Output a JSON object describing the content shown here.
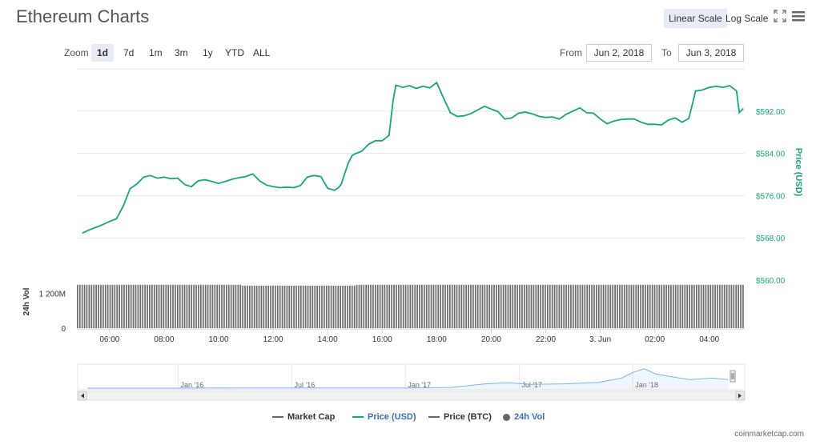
{
  "header": {
    "title": "Ethereum Charts"
  },
  "scale": {
    "linear_label": "Linear Scale",
    "log_label": "Log Scale",
    "active": "linear"
  },
  "icons": {
    "fullscreen": "expand-icon",
    "menu": "hamburger-menu-icon"
  },
  "zoom": {
    "label": "Zoom",
    "options": [
      "1d",
      "7d",
      "1m",
      "3m",
      "1y",
      "YTD",
      "ALL"
    ],
    "active": "1d"
  },
  "range": {
    "from_label": "From",
    "from_value": "Jun 2, 2018",
    "to_label": "To",
    "to_value": "Jun 3, 2018"
  },
  "colors": {
    "price_usd": "#17a57c",
    "volume": "#6b6b6b",
    "navigator": "#7cb5ec",
    "grid": "#e6e6e6"
  },
  "chart_data": [
    {
      "type": "line",
      "title": "",
      "ylabel": "Price (USD)",
      "ylim": [
        560,
        600
      ],
      "yticks": [
        560,
        568,
        576,
        584,
        592
      ],
      "ytick_labels": [
        "$560.00",
        "$568.00",
        "$576.00",
        "$584.00",
        "$592.00"
      ],
      "xticks": [
        "06:00",
        "08:00",
        "10:00",
        "12:00",
        "14:00",
        "16:00",
        "18:00",
        "20:00",
        "22:00",
        "3. Jun",
        "02:00",
        "04:00"
      ],
      "series": [
        {
          "name": "Price (USD)",
          "hours": [
            5.0,
            5.25,
            5.5,
            5.75,
            6.0,
            6.25,
            6.5,
            6.75,
            7.0,
            7.25,
            7.5,
            7.75,
            8.0,
            8.25,
            8.5,
            8.75,
            9.0,
            9.25,
            9.5,
            9.75,
            10.0,
            10.25,
            10.5,
            10.75,
            11.0,
            11.25,
            11.5,
            11.75,
            12.0,
            12.25,
            12.5,
            12.75,
            13.0,
            13.25,
            13.5,
            13.75,
            14.0,
            14.25,
            14.4,
            14.5,
            14.75,
            14.9,
            15.0,
            15.25,
            15.5,
            15.75,
            16.0,
            16.25,
            16.4,
            16.5,
            16.75,
            17.0,
            17.25,
            17.5,
            17.75,
            18.0,
            18.25,
            18.4,
            18.5,
            18.75,
            19.0,
            19.25,
            19.5,
            19.75,
            20.0,
            20.25,
            20.5,
            20.75,
            21.0,
            21.25,
            21.5,
            21.75,
            22.0,
            22.25,
            22.5,
            22.75,
            23.0,
            23.25,
            23.5,
            23.75,
            24.0,
            24.25,
            24.5,
            24.75,
            25.0,
            25.25,
            25.5,
            25.75,
            26.0,
            26.25,
            26.5,
            26.75,
            27.0,
            27.25,
            27.5,
            27.75,
            28.0,
            28.25,
            28.5,
            28.75,
            29.0,
            29.1,
            29.25
          ],
          "values": [
            568.9,
            569.5,
            570.0,
            570.5,
            571.1,
            571.6,
            574.0,
            577.3,
            578.2,
            579.5,
            579.8,
            579.3,
            579.5,
            579.2,
            579.3,
            578.1,
            577.7,
            578.8,
            579.0,
            578.7,
            578.3,
            578.7,
            579.1,
            579.4,
            579.6,
            580.1,
            578.8,
            578.0,
            577.7,
            577.5,
            577.6,
            577.5,
            577.9,
            579.5,
            579.8,
            579.6,
            577.4,
            577.0,
            577.5,
            578.2,
            582.1,
            583.6,
            583.9,
            584.4,
            585.7,
            586.4,
            586.4,
            587.4,
            594.0,
            596.9,
            596.5,
            596.8,
            596.3,
            596.7,
            596.4,
            597.4,
            594.5,
            592.8,
            591.7,
            591.0,
            591.1,
            591.5,
            592.2,
            592.9,
            592.4,
            591.9,
            590.5,
            590.7,
            591.6,
            591.8,
            591.5,
            591.0,
            590.8,
            590.9,
            590.5,
            591.4,
            592.0,
            592.6,
            591.7,
            591.6,
            590.5,
            589.6,
            590.1,
            590.4,
            590.5,
            590.5,
            589.9,
            589.5,
            589.5,
            589.4,
            590.3,
            590.7,
            589.9,
            590.6,
            595.8,
            596.0,
            596.5,
            596.7,
            596.5,
            596.8,
            595.8,
            591.7,
            592.5
          ]
        }
      ]
    },
    {
      "type": "bar",
      "title": "",
      "ylabel": "24h Vol",
      "ylim": [
        0,
        1800
      ],
      "yticks": [
        0,
        1200
      ],
      "ytick_labels": [
        "0",
        "1 200M"
      ],
      "series": [
        {
          "name": "24h Vol",
          "level": 1500,
          "bar_count": 287
        }
      ]
    },
    {
      "type": "area",
      "title": "",
      "xticks": [
        "Jan '16",
        "Jul '16",
        "Jan '17",
        "Jul '17",
        "Jan '18"
      ],
      "series": [
        {
          "name": "Price (USD) history",
          "t": [
            2015.6,
            2016.0,
            2016.3,
            2016.5,
            2016.8,
            2017.0,
            2017.2,
            2017.35,
            2017.45,
            2017.55,
            2017.7,
            2017.85,
            2017.95,
            2018.0,
            2018.05,
            2018.1,
            2018.15,
            2018.25,
            2018.35,
            2018.42
          ],
          "values": [
            1,
            1,
            10,
            12,
            11,
            9,
            50,
            300,
            380,
            270,
            300,
            400,
            700,
            1100,
            1350,
            1000,
            850,
            600,
            700,
            600
          ]
        }
      ]
    }
  ],
  "legend": {
    "items": [
      {
        "label": "Market Cap",
        "color": "#666666",
        "kind": "line"
      },
      {
        "label": "Price (USD)",
        "color": "#17a57c",
        "kind": "line"
      },
      {
        "label": "Price (BTC)",
        "color": "#666666",
        "kind": "line"
      },
      {
        "label": "24h Vol",
        "color": "#666666",
        "kind": "dot"
      }
    ]
  },
  "footer": {
    "credit": "coinmarketcap.com"
  }
}
